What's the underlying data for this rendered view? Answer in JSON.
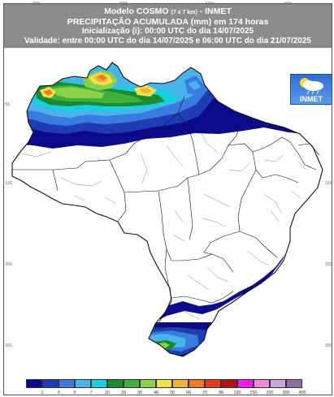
{
  "header": {
    "model_name": "Modelo COSMO",
    "model_res": "(7 x 7 km)",
    "model_org": "- INMET",
    "title": "PRECIPITAÇÃO ACUMULADA (mm) em 174 horas",
    "init": "Inicialização (i): 00:00 UTC do dia 14/07/2025",
    "validity": "Validade: entre 00:00 UTC do dia 14/07/2025 e 06:00 UTC do dia 21/07/2025"
  },
  "logo": {
    "text": "INMET",
    "icon": "cloud-sun-rain-icon"
  },
  "axis": {
    "top": [
      "70W",
      "60W",
      "50W",
      "40W"
    ],
    "left": [
      "5S",
      "10S",
      "20S",
      "30S"
    ],
    "right": [
      "5N",
      "10S",
      "20S",
      "30S"
    ]
  },
  "legend": {
    "colors": [
      "#0a0a8a",
      "#1e3cb4",
      "#3a7be0",
      "#49b4ec",
      "#17cfe0",
      "#1c8a2e",
      "#3fb03a",
      "#8bd14a",
      "#f2e14a",
      "#f0b43a",
      "#ee7a26",
      "#e23b1e",
      "#b0141a",
      "#ee1aee",
      "#f08ad2",
      "#c9a8d8",
      "#8c6fa0"
    ],
    "labels": [
      "1",
      "3",
      "5",
      "7",
      "10",
      "20",
      "30",
      "40",
      "50",
      "60",
      "70",
      "80",
      "100",
      "150",
      "200",
      "300",
      "400"
    ]
  }
}
